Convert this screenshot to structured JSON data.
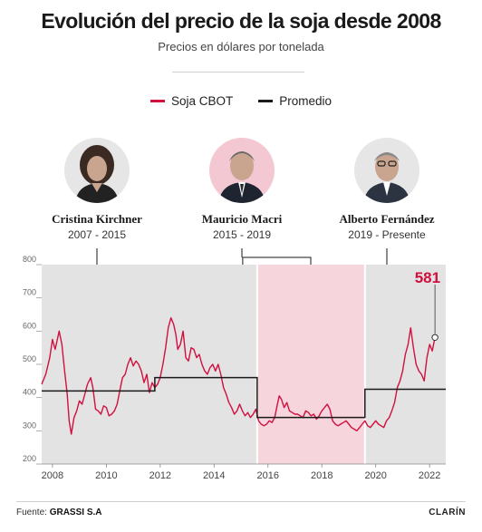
{
  "header": {
    "title": "Evolución del precio de la soja desde 2008",
    "subtitle": "Precios en dólares por tonelada"
  },
  "legend": [
    {
      "label": "Soja CBOT",
      "color": "#d0103f"
    },
    {
      "label": "Promedio",
      "color": "#1a1a1a"
    }
  ],
  "periods": [
    {
      "name": "Cristina Kirchner",
      "term": "2007 - 2015",
      "shade": "#e3e3e3",
      "portrait_bg": "#e6e6e6"
    },
    {
      "name": "Mauricio Macri",
      "term": "2015 - 2019",
      "shade": "#f6d5dd",
      "portrait_bg": "#f3c8d2"
    },
    {
      "name": "Alberto Fernández",
      "term": "2019 - Presente",
      "shade": "#e3e3e3",
      "portrait_bg": "#e6e6e6"
    }
  ],
  "chart_data": {
    "type": "line",
    "title": "Evolución del precio de la soja desde 2008",
    "subtitle": "Precios en dólares por tonelada",
    "xlabel": "",
    "ylabel": "",
    "xlim": [
      2007.6,
      2022.6
    ],
    "ylim": [
      200,
      800
    ],
    "x_ticks": [
      2008,
      2010,
      2012,
      2014,
      2016,
      2018,
      2020,
      2022
    ],
    "y_ticks": [
      200,
      300,
      400,
      500,
      600,
      700,
      800
    ],
    "grid": false,
    "legend_position": "top-center",
    "shaded_periods": [
      {
        "label": "Cristina Kirchner",
        "start": 2007.6,
        "end": 2015.6
      },
      {
        "label": "Mauricio Macri",
        "start": 2015.6,
        "end": 2019.6
      },
      {
        "label": "Alberto Fernández",
        "start": 2019.6,
        "end": 2022.6
      }
    ],
    "series": [
      {
        "name": "Soja CBOT",
        "color": "#d0103f",
        "x": [
          2007.6,
          2007.75,
          2007.9,
          2008.0,
          2008.1,
          2008.25,
          2008.35,
          2008.45,
          2008.55,
          2008.62,
          2008.7,
          2008.8,
          2008.9,
          2009.0,
          2009.1,
          2009.2,
          2009.3,
          2009.42,
          2009.5,
          2009.6,
          2009.7,
          2009.8,
          2009.9,
          2010.0,
          2010.1,
          2010.2,
          2010.3,
          2010.4,
          2010.5,
          2010.6,
          2010.7,
          2010.8,
          2010.9,
          2011.0,
          2011.1,
          2011.2,
          2011.3,
          2011.4,
          2011.5,
          2011.6,
          2011.7,
          2011.8,
          2011.9,
          2012.0,
          2012.1,
          2012.2,
          2012.3,
          2012.4,
          2012.5,
          2012.58,
          2012.65,
          2012.75,
          2012.85,
          2012.95,
          2013.05,
          2013.15,
          2013.25,
          2013.35,
          2013.45,
          2013.55,
          2013.65,
          2013.75,
          2013.85,
          2013.95,
          2014.05,
          2014.15,
          2014.25,
          2014.35,
          2014.45,
          2014.55,
          2014.65,
          2014.75,
          2014.85,
          2014.95,
          2015.05,
          2015.15,
          2015.25,
          2015.35,
          2015.45,
          2015.55,
          2015.65,
          2015.75,
          2015.85,
          2015.95,
          2016.05,
          2016.15,
          2016.25,
          2016.35,
          2016.42,
          2016.5,
          2016.6,
          2016.7,
          2016.8,
          2016.9,
          2017.0,
          2017.1,
          2017.2,
          2017.3,
          2017.4,
          2017.5,
          2017.6,
          2017.7,
          2017.8,
          2017.9,
          2018.0,
          2018.1,
          2018.2,
          2018.3,
          2018.4,
          2018.5,
          2018.6,
          2018.7,
          2018.8,
          2018.9,
          2019.0,
          2019.1,
          2019.2,
          2019.3,
          2019.4,
          2019.5,
          2019.6,
          2019.7,
          2019.8,
          2019.9,
          2020.0,
          2020.1,
          2020.2,
          2020.3,
          2020.4,
          2020.5,
          2020.6,
          2020.7,
          2020.8,
          2020.9,
          2021.0,
          2021.1,
          2021.2,
          2021.3,
          2021.4,
          2021.5,
          2021.6,
          2021.7,
          2021.8,
          2021.9,
          2022.0,
          2022.1,
          2022.2
        ],
        "values": [
          440,
          470,
          520,
          575,
          545,
          600,
          560,
          480,
          410,
          330,
          290,
          340,
          360,
          390,
          380,
          410,
          440,
          460,
          430,
          365,
          360,
          350,
          375,
          370,
          345,
          350,
          360,
          380,
          420,
          460,
          470,
          500,
          520,
          495,
          510,
          500,
          480,
          445,
          470,
          415,
          445,
          430,
          440,
          460,
          500,
          550,
          610,
          640,
          620,
          590,
          545,
          560,
          600,
          520,
          510,
          550,
          545,
          520,
          530,
          500,
          480,
          470,
          490,
          500,
          480,
          500,
          470,
          430,
          410,
          385,
          370,
          350,
          360,
          380,
          360,
          345,
          355,
          340,
          350,
          365,
          330,
          320,
          315,
          320,
          330,
          325,
          340,
          380,
          405,
          395,
          370,
          385,
          360,
          355,
          350,
          350,
          345,
          340,
          360,
          355,
          345,
          350,
          335,
          345,
          360,
          370,
          380,
          365,
          330,
          320,
          315,
          320,
          325,
          330,
          320,
          310,
          305,
          300,
          310,
          320,
          330,
          315,
          310,
          320,
          330,
          320,
          315,
          310,
          330,
          340,
          360,
          385,
          430,
          450,
          480,
          530,
          560,
          610,
          550,
          500,
          480,
          470,
          450,
          520,
          560,
          540,
          581
        ]
      },
      {
        "name": "Promedio",
        "color": "#1a1a1a",
        "step_segments": [
          {
            "start": 2007.6,
            "end": 2011.8,
            "value": 420
          },
          {
            "start": 2011.8,
            "end": 2015.6,
            "value": 460
          },
          {
            "start": 2015.6,
            "end": 2019.6,
            "value": 340
          },
          {
            "start": 2019.6,
            "end": 2022.6,
            "value": 425
          }
        ]
      }
    ],
    "annotations": [
      {
        "x": 2022.2,
        "y": 581,
        "text": "581",
        "color": "#d0103f"
      }
    ]
  },
  "footer": {
    "source_prefix": "Fuente: ",
    "source_name": "GRASSI S.A",
    "brand": "CLARÍN"
  }
}
